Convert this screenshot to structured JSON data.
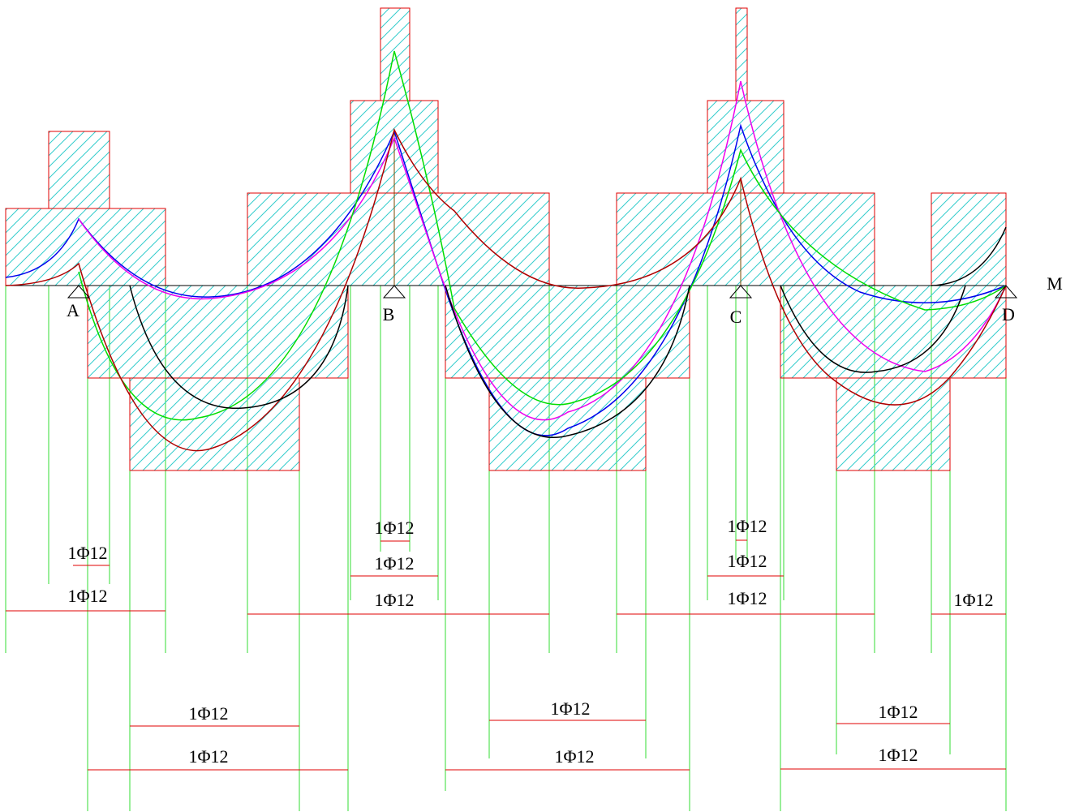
{
  "supports": [
    {
      "label": "A"
    },
    {
      "label": "B"
    },
    {
      "label": "C"
    },
    {
      "label": "D"
    }
  ],
  "axis_label": "M",
  "rebars": [
    {
      "label": "1Φ12"
    },
    {
      "label": "1Φ12"
    },
    {
      "label": "1Φ12"
    },
    {
      "label": "1Φ12"
    },
    {
      "label": "1Φ12"
    },
    {
      "label": "1Φ12"
    },
    {
      "label": "1Φ12"
    },
    {
      "label": "1Φ12"
    },
    {
      "label": "1Φ12"
    },
    {
      "label": "1Φ12"
    },
    {
      "label": "1Φ12"
    },
    {
      "label": "1Φ12"
    },
    {
      "label": "1Φ12"
    },
    {
      "label": "1Φ12"
    },
    {
      "label": "1Φ12"
    }
  ]
}
